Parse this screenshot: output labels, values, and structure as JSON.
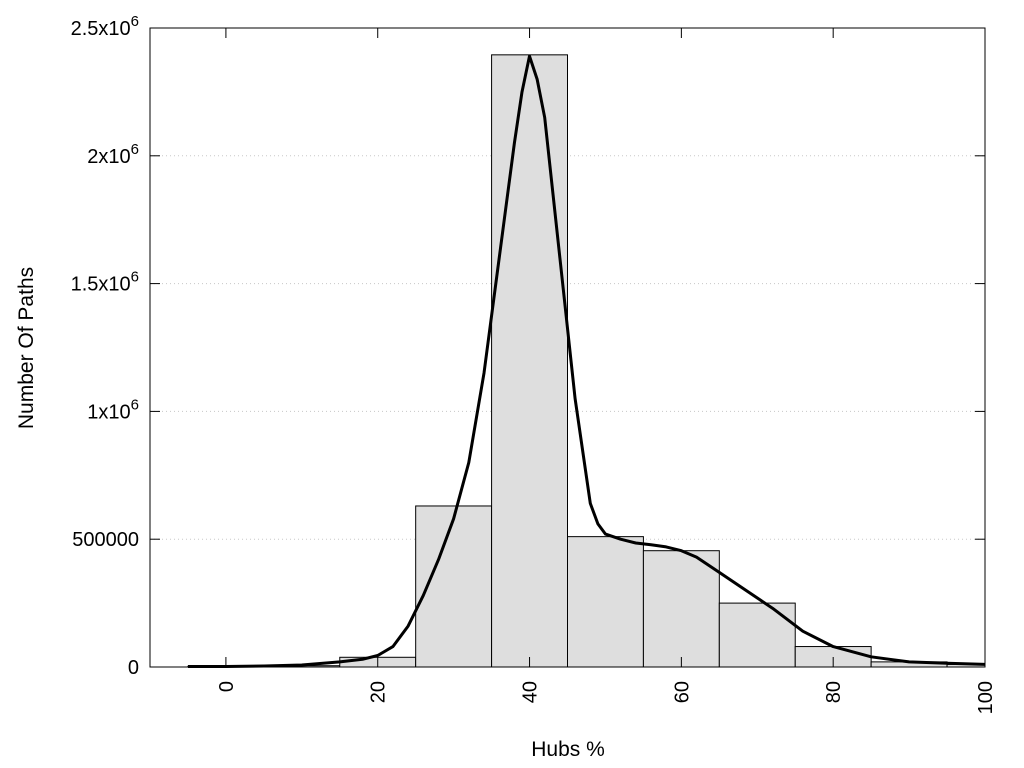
{
  "chart_data": {
    "type": "bar",
    "xlabel": "Hubs %",
    "ylabel": "Number Of Paths",
    "xlim": [
      -10,
      100
    ],
    "ylim": [
      0,
      2500000
    ],
    "grid": true,
    "x_ticks": [
      {
        "value": 0,
        "label": "0"
      },
      {
        "value": 20,
        "label": "20"
      },
      {
        "value": 40,
        "label": "40"
      },
      {
        "value": 60,
        "label": "60"
      },
      {
        "value": 80,
        "label": "80"
      },
      {
        "value": 100,
        "label": "100"
      }
    ],
    "y_ticks": [
      {
        "value": 0,
        "base": "0",
        "exp": ""
      },
      {
        "value": 500000,
        "base": "500000",
        "exp": ""
      },
      {
        "value": 1000000,
        "base": "1x10",
        "exp": "6"
      },
      {
        "value": 1500000,
        "base": "1.5x10",
        "exp": "6"
      },
      {
        "value": 2000000,
        "base": "2x10",
        "exp": "6"
      },
      {
        "value": 2500000,
        "base": "2.5x10",
        "exp": "6"
      }
    ],
    "bars": [
      {
        "x0": -5,
        "x1": 5,
        "value": 3000
      },
      {
        "x0": 5,
        "x1": 15,
        "value": 5000
      },
      {
        "x0": 15,
        "x1": 25,
        "value": 38000
      },
      {
        "x0": 25,
        "x1": 35,
        "value": 630000
      },
      {
        "x0": 35,
        "x1": 45,
        "value": 2395000
      },
      {
        "x0": 45,
        "x1": 55,
        "value": 510000
      },
      {
        "x0": 55,
        "x1": 65,
        "value": 455000
      },
      {
        "x0": 65,
        "x1": 75,
        "value": 250000
      },
      {
        "x0": 75,
        "x1": 85,
        "value": 80000
      },
      {
        "x0": 85,
        "x1": 95,
        "value": 20000
      },
      {
        "x0": 95,
        "x1": 100,
        "value": 10000
      }
    ],
    "curve": {
      "type": "line",
      "x": [
        -5,
        0,
        5,
        10,
        15,
        18,
        20,
        22,
        24,
        26,
        28,
        30,
        32,
        34,
        36,
        38,
        39,
        40,
        41,
        42,
        44,
        46,
        48,
        49,
        50,
        52,
        54,
        56,
        58,
        60,
        62,
        65,
        68,
        72,
        76,
        80,
        85,
        90,
        95,
        100
      ],
      "y": [
        2000,
        2000,
        4000,
        8000,
        20000,
        30000,
        45000,
        80000,
        160000,
        280000,
        420000,
        580000,
        800000,
        1150000,
        1600000,
        2050000,
        2250000,
        2390000,
        2300000,
        2150000,
        1600000,
        1050000,
        640000,
        560000,
        520000,
        500000,
        485000,
        478000,
        470000,
        455000,
        430000,
        370000,
        310000,
        230000,
        140000,
        80000,
        40000,
        20000,
        15000,
        10000
      ]
    }
  }
}
